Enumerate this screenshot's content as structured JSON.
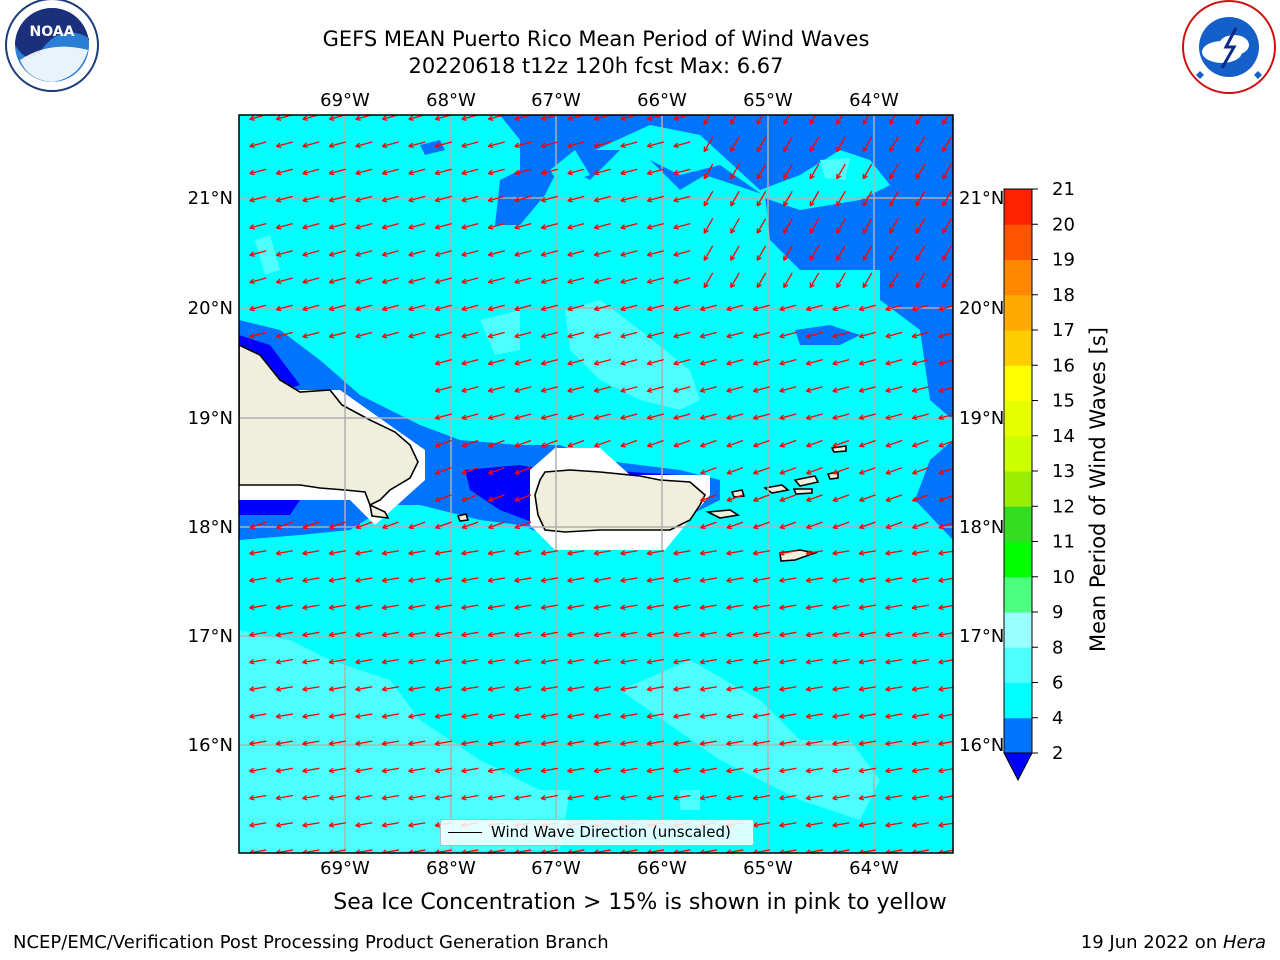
{
  "title": {
    "line1": "GEFS MEAN Puerto Rico Mean Period of Wind Waves",
    "line2": "20220618 t12z 120h fcst   Max: 6.67"
  },
  "logos": {
    "left": "NOAA",
    "left_ring_text": "NATIONAL OCEANIC AND ATMOSPHERIC ADMINISTRATION",
    "left_bottom_text": "U.S. DEPARTMENT OF COMMERCE",
    "right_ring_text": "NATIONAL WEATHER SERVICE"
  },
  "map": {
    "lon_ticks": [
      "69°W",
      "68°W",
      "67°W",
      "66°W",
      "65°W",
      "64°W"
    ],
    "lat_ticks": [
      "21°N",
      "20°N",
      "19°N",
      "18°N",
      "17°N",
      "16°N"
    ],
    "background_color": "#00ffff",
    "arrow_color": "#ff0000",
    "land_color": "#f0eedc"
  },
  "colorbar": {
    "label": "Mean Period of Wind Waves [s]",
    "ticks": [
      "2",
      "4",
      "6",
      "8",
      "9",
      "10",
      "11",
      "12",
      "13",
      "14",
      "15",
      "16",
      "17",
      "18",
      "19",
      "20",
      "21"
    ],
    "colors": [
      "#0073ff",
      "#00ffff",
      "#4dffff",
      "#99ffff",
      "#4dff80",
      "#00ff00",
      "#33dd22",
      "#99ee00",
      "#ccff00",
      "#e6ff00",
      "#ffff00",
      "#ffcc00",
      "#ffaa00",
      "#ff8800",
      "#ff5500",
      "#ff2200"
    ],
    "under_color": "#0000ff"
  },
  "legend": {
    "label": "Wind Wave Direction (unscaled)"
  },
  "note": "Sea Ice Concentration > 15% is shown in pink to yellow",
  "footer": {
    "left": "NCEP/EMC/Verification Post Processing Product Generation Branch",
    "right_date": "19 Jun 2022 on ",
    "right_host": "Hera"
  }
}
